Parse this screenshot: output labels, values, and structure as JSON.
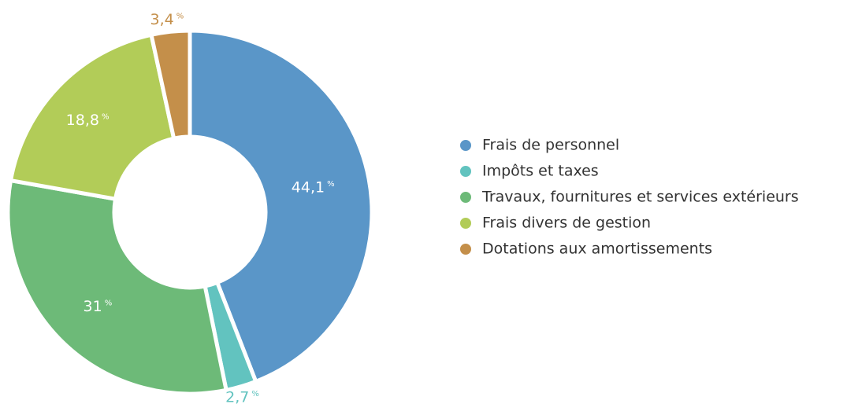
{
  "chart_data": {
    "type": "donut",
    "categories": [
      "Frais de personnel",
      "Impôts et taxes",
      "Travaux, fournitures et services extérieurs",
      "Frais divers de gestion",
      "Dotations aux amortissements"
    ],
    "values": [
      44.1,
      2.7,
      31,
      18.8,
      3.4
    ],
    "value_labels": [
      "44,1",
      "2,7",
      "31",
      "18,8",
      "3,4"
    ],
    "unit": "%",
    "colors": [
      "#5a96c8",
      "#62c3bf",
      "#6dba78",
      "#b2cc58",
      "#c48f4a"
    ],
    "legend": "right"
  }
}
